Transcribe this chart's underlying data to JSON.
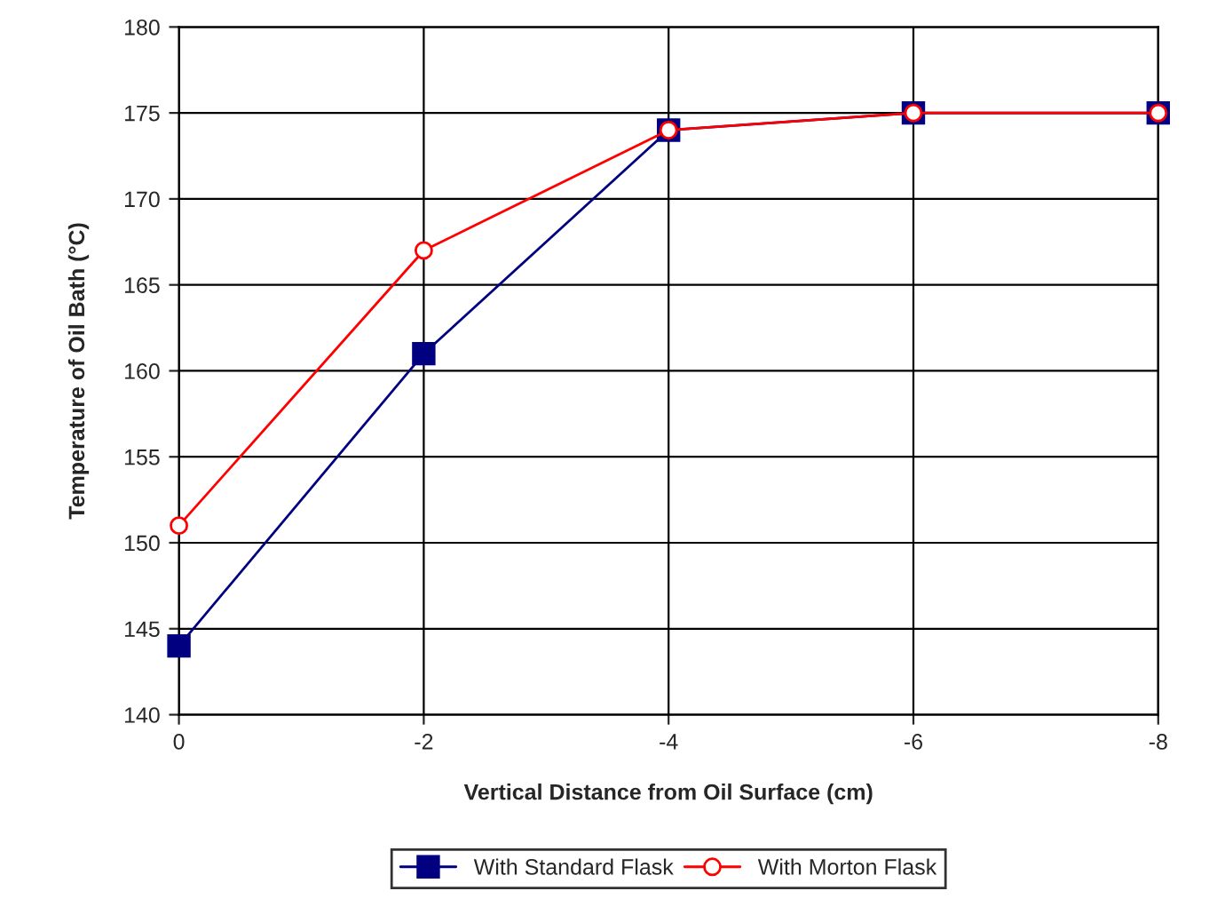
{
  "chart_data": {
    "type": "line",
    "xlabel": "Vertical Distance from Oil Surface (cm)",
    "ylabel": "Temperature of Oil Bath (°C)",
    "x": [
      0,
      -2,
      -4,
      -6,
      -8
    ],
    "series": [
      {
        "name": "With Standard Flask",
        "color": "#000080",
        "values": [
          144,
          161,
          174,
          175,
          175
        ],
        "marker": "square"
      },
      {
        "name": "With Morton Flask",
        "color": "#ff0000",
        "values": [
          151,
          167,
          174,
          175,
          175
        ],
        "marker": "circle"
      }
    ],
    "xlim": [
      0,
      -8
    ],
    "xticks": [
      0,
      -2,
      -4,
      -6,
      -8
    ],
    "ylim": [
      140,
      180
    ],
    "yticks": [
      140,
      145,
      150,
      155,
      160,
      165,
      170,
      175,
      180
    ],
    "grid": true,
    "legend": "bottom",
    "line_style": "solid"
  }
}
